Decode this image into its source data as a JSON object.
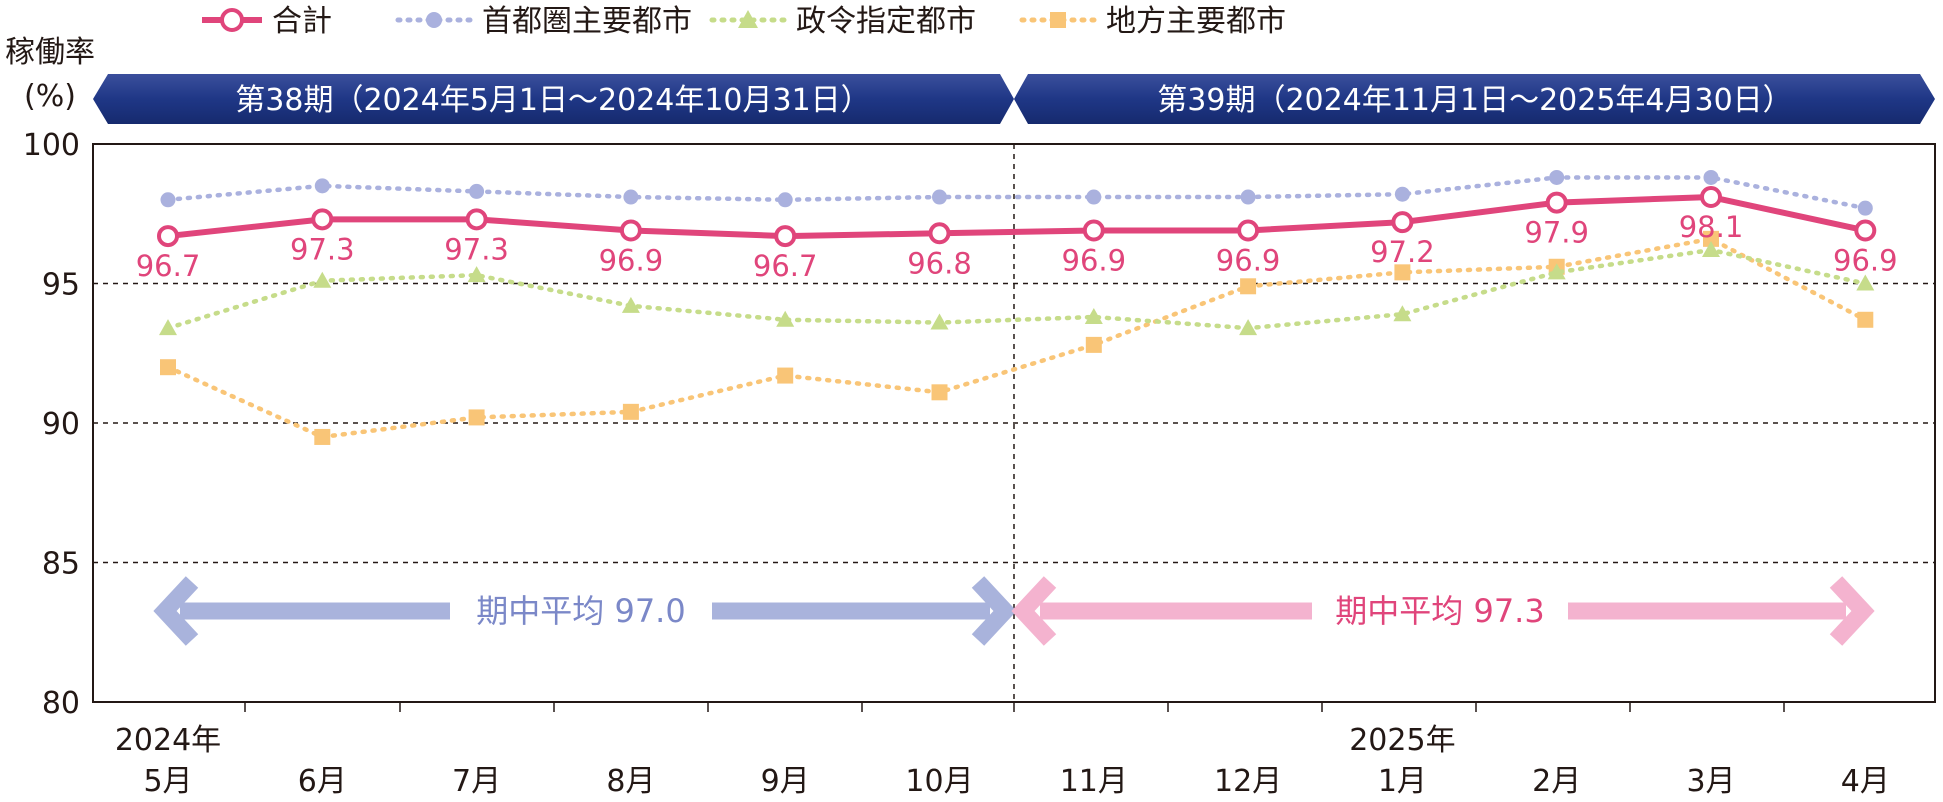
{
  "chart_data": {
    "type": "line",
    "y_axis_label_line1": "稼働率",
    "y_axis_label_line2": "(%)",
    "ylim": [
      80,
      100
    ],
    "yticks": [
      "100",
      "95",
      "90",
      "85",
      "80"
    ],
    "categories": [
      "5月",
      "6月",
      "7月",
      "8月",
      "9月",
      "10月",
      "11月",
      "12月",
      "1月",
      "2月",
      "3月",
      "4月"
    ],
    "year_labels": [
      {
        "label": "2024年",
        "category_index": 0
      },
      {
        "label": "2025年",
        "category_index": 8
      }
    ],
    "periods": [
      {
        "label": "第38期（2024年5月1日～2024年10月31日）",
        "start_index": 0,
        "end_index": 5
      },
      {
        "label": "第39期（2024年11月1日～2025年4月30日）",
        "start_index": 6,
        "end_index": 11
      }
    ],
    "period_averages": [
      {
        "label": "期中平均 97.0",
        "color": "#a9b3dc",
        "text_color": "#7b88c8"
      },
      {
        "label": "期中平均 97.3",
        "color": "#f4b3cf",
        "text_color": "#e0457b"
      }
    ],
    "series": [
      {
        "name": "合計",
        "color": "#e0457b",
        "style": "solid",
        "marker": "circle",
        "values": [
          96.7,
          97.3,
          97.3,
          96.9,
          96.7,
          96.8,
          96.9,
          96.9,
          97.2,
          97.9,
          98.1,
          96.9
        ],
        "data_labels": [
          "96.7",
          "97.3",
          "97.3",
          "96.9",
          "96.7",
          "96.8",
          "96.9",
          "96.9",
          "97.2",
          "97.9",
          "98.1",
          "96.9"
        ]
      },
      {
        "name": "首都圏主要都市",
        "color": "#aab1de",
        "style": "dotted",
        "marker": "circle",
        "values": [
          98.0,
          98.5,
          98.3,
          98.1,
          98.0,
          98.1,
          98.1,
          98.1,
          98.2,
          98.8,
          98.8,
          97.7
        ]
      },
      {
        "name": "政令指定都市",
        "color": "#c6dc8a",
        "style": "dotted",
        "marker": "triangle",
        "values": [
          93.4,
          95.1,
          95.3,
          94.2,
          93.7,
          93.6,
          93.8,
          93.4,
          93.9,
          95.4,
          96.2,
          95.0
        ]
      },
      {
        "name": "地方主要都市",
        "color": "#f9c577",
        "style": "dotted",
        "marker": "square",
        "values": [
          92.0,
          89.5,
          90.2,
          90.4,
          91.7,
          91.1,
          92.8,
          94.9,
          95.4,
          95.6,
          96.6,
          93.7
        ]
      }
    ]
  }
}
